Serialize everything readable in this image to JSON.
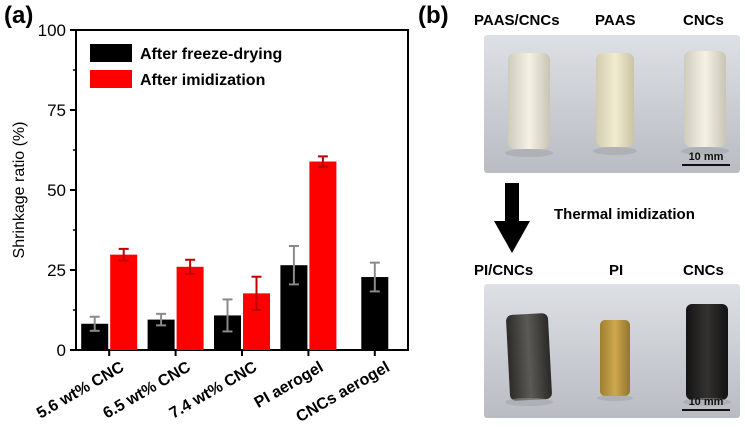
{
  "panel_a_label": "(a)",
  "panel_b_label": "(b)",
  "chart_data": {
    "type": "bar",
    "categories": [
      "5.6 wt% CNC",
      "6.5 wt% CNC",
      "7.4 wt% CNC",
      "PI aerogel",
      "CNCs aerogel"
    ],
    "ylabel": "Shrinkage ratio (%)",
    "xlabel": "",
    "ylim": [
      0,
      100
    ],
    "yticks": [
      0,
      25,
      50,
      75,
      100
    ],
    "legend_position": "top-left",
    "series": [
      {
        "name": "After freeze-drying",
        "color": "#000000",
        "values": [
          8.2,
          9.5,
          10.8,
          26.5,
          22.8
        ],
        "errors": [
          2.2,
          1.8,
          5.0,
          6.0,
          4.5
        ]
      },
      {
        "name": "After imidization",
        "color": "#ff0000",
        "values": [
          29.8,
          26.0,
          17.7,
          58.9,
          null
        ],
        "errors": [
          1.8,
          2.2,
          5.2,
          1.6,
          null
        ]
      }
    ]
  },
  "photos": {
    "top_labels": [
      "PAAS/CNCs",
      "PAAS",
      "CNCs"
    ],
    "bottom_labels": [
      "PI/CNCs",
      "PI",
      "CNCs"
    ],
    "arrow_caption": "Thermal imidization",
    "scale_top": "10 mm",
    "scale_bottom": "10 mm"
  }
}
